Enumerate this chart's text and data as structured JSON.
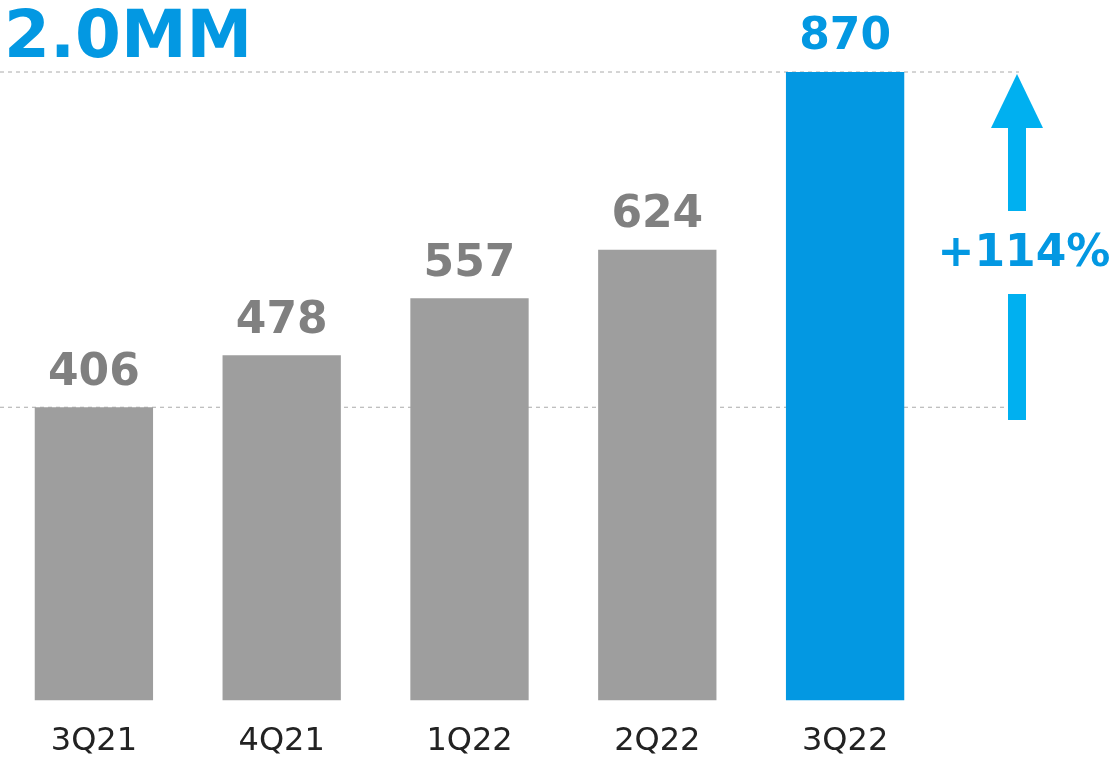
{
  "chart_data": {
    "type": "bar",
    "title": "2.0MM",
    "categories": [
      "3Q21",
      "4Q21",
      "1Q22",
      "2Q22",
      "3Q22"
    ],
    "values": [
      406,
      478,
      557,
      624,
      870
    ],
    "colors": [
      "#9e9e9e",
      "#9e9e9e",
      "#9e9e9e",
      "#9e9e9e",
      "#0398e2"
    ],
    "data_labels": true,
    "ref_lines": [
      {
        "axis": "y",
        "value": 406,
        "color": "#aaaaaa",
        "line_style": "dashed"
      },
      {
        "axis": "y",
        "value": 870,
        "color": "#aaaaaa",
        "line_style": "dashed"
      }
    ],
    "annotations": [
      "+114%"
    ],
    "grid": false,
    "legend": false
  }
}
